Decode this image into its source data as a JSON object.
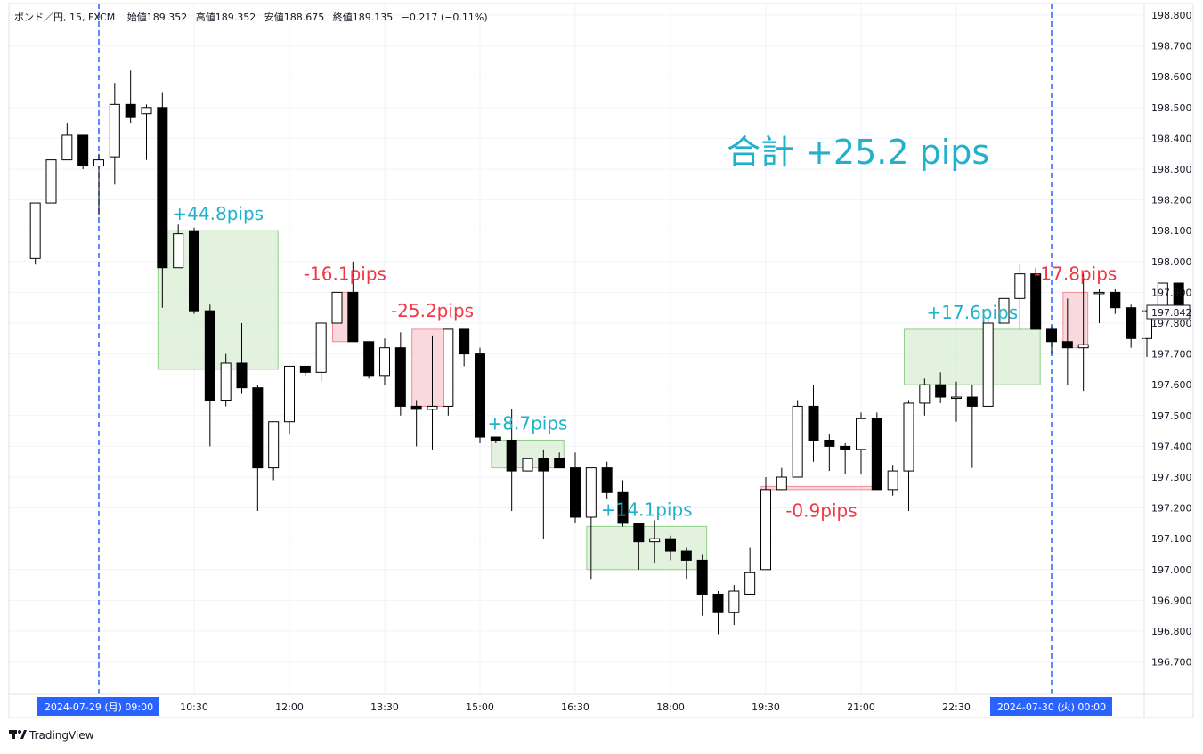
{
  "header": {
    "symbol": "ポンド／円, 15, FXCM",
    "open": "始値189.352",
    "high": "高値189.352",
    "low": "安値188.675",
    "close": "終値189.135",
    "change": "−0.217 (−0.11%)"
  },
  "brand": {
    "name": "TradingView",
    "icon": "tradingview-logo-icon"
  },
  "total_label": "合計 +25.2 pips",
  "current_price_tag": "197.842",
  "colors": {
    "profit_box": "#d5ecd2",
    "loss_box": "#f9d0d4",
    "profit_text": "#22b0cc",
    "loss_text": "#f23645",
    "session_line": "#2962ff",
    "tag_bg": "#2962ff",
    "candle": "#000000"
  },
  "chart_data": {
    "type": "candlestick",
    "title": "",
    "xlabel": "",
    "ylabel": "",
    "ylim": [
      196.6,
      198.84
    ],
    "grid": true,
    "legend": "none",
    "y_ticks": [
      "198.800",
      "198.700",
      "198.600",
      "198.500",
      "198.400",
      "198.300",
      "198.200",
      "198.100",
      "198.000",
      "197.900",
      "197.800",
      "197.700",
      "197.600",
      "197.500",
      "197.400",
      "197.300",
      "197.200",
      "197.100",
      "197.000",
      "196.900",
      "196.800",
      "196.700"
    ],
    "x_ticks": [
      {
        "label": "2024-07-29 (月)   09:00",
        "t": "09:00",
        "highlight": true
      },
      {
        "label": "10:30",
        "t": "10:30"
      },
      {
        "label": "12:00",
        "t": "12:00"
      },
      {
        "label": "13:30",
        "t": "13:30"
      },
      {
        "label": "15:00",
        "t": "15:00"
      },
      {
        "label": "16:30",
        "t": "16:30"
      },
      {
        "label": "18:00",
        "t": "18:00"
      },
      {
        "label": "19:30",
        "t": "19:30"
      },
      {
        "label": "21:00",
        "t": "21:00"
      },
      {
        "label": "22:30",
        "t": "22:30"
      },
      {
        "label": "2024-07-30 (火)   00:00",
        "t": "00:00+1",
        "highlight": true
      }
    ],
    "candles": [
      {
        "t": "08:00",
        "o": 198.01,
        "h": 198.19,
        "l": 197.99,
        "c": 198.19
      },
      {
        "t": "08:15",
        "o": 198.19,
        "h": 198.33,
        "l": 198.19,
        "c": 198.33
      },
      {
        "t": "08:30",
        "o": 198.33,
        "h": 198.45,
        "l": 198.33,
        "c": 198.41
      },
      {
        "t": "08:45",
        "o": 198.41,
        "h": 198.41,
        "l": 198.3,
        "c": 198.31
      },
      {
        "t": "09:00",
        "o": 198.31,
        "h": 198.35,
        "l": 198.15,
        "c": 198.33
      },
      {
        "t": "09:15",
        "o": 198.34,
        "h": 198.58,
        "l": 198.25,
        "c": 198.51
      },
      {
        "t": "09:30",
        "o": 198.51,
        "h": 198.62,
        "l": 198.45,
        "c": 198.47
      },
      {
        "t": "09:45",
        "o": 198.48,
        "h": 198.51,
        "l": 198.33,
        "c": 198.5
      },
      {
        "t": "10:00",
        "o": 198.5,
        "h": 198.55,
        "l": 197.85,
        "c": 197.98
      },
      {
        "t": "10:15",
        "o": 197.98,
        "h": 198.12,
        "l": 197.98,
        "c": 198.09
      },
      {
        "t": "10:30",
        "o": 198.1,
        "h": 198.11,
        "l": 197.83,
        "c": 197.84
      },
      {
        "t": "10:45",
        "o": 197.84,
        "h": 197.86,
        "l": 197.4,
        "c": 197.55
      },
      {
        "t": "11:00",
        "o": 197.55,
        "h": 197.7,
        "l": 197.53,
        "c": 197.67
      },
      {
        "t": "11:15",
        "o": 197.67,
        "h": 197.8,
        "l": 197.57,
        "c": 197.59
      },
      {
        "t": "11:30",
        "o": 197.59,
        "h": 197.6,
        "l": 197.19,
        "c": 197.33
      },
      {
        "t": "11:45",
        "o": 197.33,
        "h": 197.48,
        "l": 197.29,
        "c": 197.48
      },
      {
        "t": "12:00",
        "o": 197.48,
        "h": 197.65,
        "l": 197.44,
        "c": 197.66
      },
      {
        "t": "12:15",
        "o": 197.66,
        "h": 197.66,
        "l": 197.63,
        "c": 197.64
      },
      {
        "t": "12:30",
        "o": 197.64,
        "h": 197.8,
        "l": 197.61,
        "c": 197.8
      },
      {
        "t": "12:45",
        "o": 197.8,
        "h": 197.91,
        "l": 197.76,
        "c": 197.9
      },
      {
        "t": "13:00",
        "o": 197.9,
        "h": 198.0,
        "l": 197.74,
        "c": 197.74
      },
      {
        "t": "13:15",
        "o": 197.74,
        "h": 197.74,
        "l": 197.62,
        "c": 197.63
      },
      {
        "t": "13:30",
        "o": 197.63,
        "h": 197.75,
        "l": 197.6,
        "c": 197.72
      },
      {
        "t": "13:45",
        "o": 197.72,
        "h": 197.77,
        "l": 197.5,
        "c": 197.53
      },
      {
        "t": "14:00",
        "o": 197.53,
        "h": 197.55,
        "l": 197.4,
        "c": 197.52
      },
      {
        "t": "14:15",
        "o": 197.52,
        "h": 197.76,
        "l": 197.39,
        "c": 197.53
      },
      {
        "t": "14:30",
        "o": 197.53,
        "h": 197.78,
        "l": 197.5,
        "c": 197.78
      },
      {
        "t": "14:45",
        "o": 197.78,
        "h": 197.78,
        "l": 197.66,
        "c": 197.7
      },
      {
        "t": "15:00",
        "o": 197.7,
        "h": 197.72,
        "l": 197.41,
        "c": 197.43
      },
      {
        "t": "15:15",
        "o": 197.43,
        "h": 197.43,
        "l": 197.41,
        "c": 197.42
      },
      {
        "t": "15:30",
        "o": 197.42,
        "h": 197.52,
        "l": 197.19,
        "c": 197.32
      },
      {
        "t": "15:45",
        "o": 197.32,
        "h": 197.36,
        "l": 197.32,
        "c": 197.36
      },
      {
        "t": "16:00",
        "o": 197.36,
        "h": 197.39,
        "l": 197.1,
        "c": 197.32
      },
      {
        "t": "16:15",
        "o": 197.36,
        "h": 197.38,
        "l": 197.33,
        "c": 197.33
      },
      {
        "t": "16:30",
        "o": 197.33,
        "h": 197.38,
        "l": 197.15,
        "c": 197.17
      },
      {
        "t": "16:45",
        "o": 197.17,
        "h": 197.33,
        "l": 196.97,
        "c": 197.33
      },
      {
        "t": "17:00",
        "o": 197.33,
        "h": 197.35,
        "l": 197.23,
        "c": 197.25
      },
      {
        "t": "17:15",
        "o": 197.25,
        "h": 197.29,
        "l": 197.14,
        "c": 197.15
      },
      {
        "t": "17:30",
        "o": 197.15,
        "h": 197.15,
        "l": 197.0,
        "c": 197.09
      },
      {
        "t": "17:45",
        "o": 197.09,
        "h": 197.16,
        "l": 197.02,
        "c": 197.1
      },
      {
        "t": "18:00",
        "o": 197.1,
        "h": 197.11,
        "l": 197.03,
        "c": 197.06
      },
      {
        "t": "18:15",
        "o": 197.06,
        "h": 197.07,
        "l": 196.97,
        "c": 197.03
      },
      {
        "t": "18:30",
        "o": 197.03,
        "h": 197.05,
        "l": 196.85,
        "c": 196.92
      },
      {
        "t": "18:45",
        "o": 196.92,
        "h": 196.93,
        "l": 196.79,
        "c": 196.86
      },
      {
        "t": "19:00",
        "o": 196.86,
        "h": 196.95,
        "l": 196.82,
        "c": 196.93
      },
      {
        "t": "19:15",
        "o": 196.92,
        "h": 197.07,
        "l": 196.92,
        "c": 196.99
      },
      {
        "t": "19:30",
        "o": 197.0,
        "h": 197.3,
        "l": 197.0,
        "c": 197.26
      },
      {
        "t": "19:45",
        "o": 197.26,
        "h": 197.33,
        "l": 197.27,
        "c": 197.3
      },
      {
        "t": "20:00",
        "o": 197.3,
        "h": 197.55,
        "l": 197.3,
        "c": 197.53
      },
      {
        "t": "20:15",
        "o": 197.53,
        "h": 197.6,
        "l": 197.35,
        "c": 197.42
      },
      {
        "t": "20:30",
        "o": 197.42,
        "h": 197.44,
        "l": 197.32,
        "c": 197.4
      },
      {
        "t": "20:45",
        "o": 197.4,
        "h": 197.41,
        "l": 197.31,
        "c": 197.39
      },
      {
        "t": "21:00",
        "o": 197.39,
        "h": 197.51,
        "l": 197.31,
        "c": 197.49
      },
      {
        "t": "21:15",
        "o": 197.49,
        "h": 197.51,
        "l": 197.26,
        "c": 197.26
      },
      {
        "t": "21:30",
        "o": 197.26,
        "h": 197.34,
        "l": 197.24,
        "c": 197.32
      },
      {
        "t": "21:45",
        "o": 197.32,
        "h": 197.55,
        "l": 197.19,
        "c": 197.54
      },
      {
        "t": "22:00",
        "o": 197.54,
        "h": 197.62,
        "l": 197.5,
        "c": 197.6
      },
      {
        "t": "22:15",
        "o": 197.6,
        "h": 197.64,
        "l": 197.54,
        "c": 197.56
      },
      {
        "t": "22:30",
        "o": 197.56,
        "h": 197.61,
        "l": 197.48,
        "c": 197.56
      },
      {
        "t": "22:45",
        "o": 197.56,
        "h": 197.6,
        "l": 197.33,
        "c": 197.53
      },
      {
        "t": "23:00",
        "o": 197.53,
        "h": 197.82,
        "l": 197.53,
        "c": 197.8
      },
      {
        "t": "23:15",
        "o": 197.8,
        "h": 198.06,
        "l": 197.74,
        "c": 197.88
      },
      {
        "t": "23:30",
        "o": 197.88,
        "h": 197.99,
        "l": 197.78,
        "c": 197.96
      },
      {
        "t": "23:45",
        "o": 197.96,
        "h": 197.98,
        "l": 197.78,
        "c": 197.78
      },
      {
        "t": "00:00",
        "o": 197.78,
        "h": 197.79,
        "l": 197.7,
        "c": 197.74
      },
      {
        "t": "00:15",
        "o": 197.74,
        "h": 197.88,
        "l": 197.6,
        "c": 197.72
      },
      {
        "t": "00:30",
        "o": 197.72,
        "h": 197.96,
        "l": 197.58,
        "c": 197.73
      },
      {
        "t": "00:45",
        "o": 197.9,
        "h": 197.91,
        "l": 197.8,
        "c": 197.9
      },
      {
        "t": "01:00",
        "o": 197.9,
        "h": 197.91,
        "l": 197.83,
        "c": 197.85
      },
      {
        "t": "01:15",
        "o": 197.85,
        "h": 197.86,
        "l": 197.72,
        "c": 197.75
      },
      {
        "t": "01:30",
        "o": 197.75,
        "h": 197.85,
        "l": 197.69,
        "c": 197.84
      },
      {
        "t": "01:45",
        "o": 197.84,
        "h": 197.93,
        "l": 197.83,
        "c": 197.93
      },
      {
        "t": "02:00",
        "o": 197.93,
        "h": 197.93,
        "l": 197.83,
        "c": 197.84
      }
    ],
    "trades": [
      {
        "label": "+44.8pips",
        "result": "profit",
        "start": "10:00",
        "end": "11:45",
        "from": 198.1,
        "to": 197.65
      },
      {
        "label": "-16.1pips",
        "result": "loss",
        "start": "12:45",
        "end": "13:00",
        "from": 197.9,
        "to": 197.74
      },
      {
        "label": "-25.2pips",
        "result": "loss",
        "start": "14:00",
        "end": "14:30",
        "from": 197.53,
        "to": 197.78
      },
      {
        "label": "+8.7pips",
        "result": "profit",
        "start": "15:15",
        "end": "16:15",
        "from": 197.42,
        "to": 197.33
      },
      {
        "label": "+14.1pips",
        "result": "profit",
        "start": "16:45",
        "end": "18:30",
        "from": 197.14,
        "to": 197.0
      },
      {
        "label": "-0.9pips",
        "result": "loss",
        "start": "19:30",
        "end": "21:15",
        "from": 197.26,
        "to": 197.27
      },
      {
        "label": "+17.6pips",
        "result": "profit",
        "start": "21:45",
        "end": "23:45",
        "from": 197.78,
        "to": 197.6
      },
      {
        "label": "-17.8pips",
        "result": "loss",
        "start": "00:15",
        "end": "00:30",
        "from": 197.72,
        "to": 197.9
      }
    ],
    "session_lines": [
      "09:00",
      "00:00+1"
    ]
  }
}
